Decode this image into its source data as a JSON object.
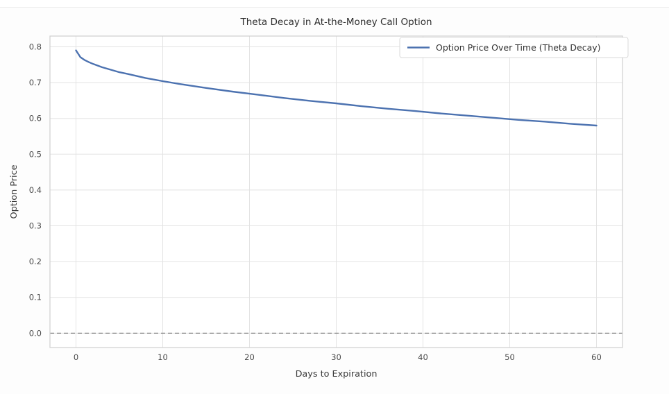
{
  "chart_data": {
    "type": "line",
    "title": "Theta Decay in At-the-Money Call Option",
    "xlabel": "Days to Expiration",
    "ylabel": "Option Price",
    "xlim": [
      -3,
      63
    ],
    "ylim": [
      -0.04,
      0.83
    ],
    "xticks": [
      0,
      10,
      20,
      30,
      40,
      50,
      60
    ],
    "xtick_labels": [
      "0",
      "10",
      "20",
      "30",
      "40",
      "50",
      "60"
    ],
    "yticks": [
      0.0,
      0.1,
      0.2,
      0.3,
      0.4,
      0.5,
      0.6,
      0.7,
      0.8
    ],
    "ytick_labels": [
      "0.0",
      "0.1",
      "0.2",
      "0.3",
      "0.4",
      "0.5",
      "0.6",
      "0.7",
      "0.8"
    ],
    "grid": true,
    "legend_position": "upper right",
    "series": [
      {
        "name": "Option Price Over Time (Theta Decay)",
        "color": "#4c72b0",
        "x": [
          0,
          0.5,
          1,
          1.5,
          2,
          3,
          4,
          5,
          6,
          8,
          10,
          12,
          15,
          18,
          21,
          24,
          27,
          30,
          33,
          36,
          39,
          42,
          45,
          48,
          51,
          54,
          57,
          60
        ],
        "y": [
          0.79,
          0.771,
          0.763,
          0.757,
          0.752,
          0.743,
          0.736,
          0.729,
          0.724,
          0.713,
          0.704,
          0.696,
          0.685,
          0.675,
          0.666,
          0.657,
          0.649,
          0.642,
          0.634,
          0.627,
          0.621,
          0.614,
          0.608,
          0.602,
          0.596,
          0.591,
          0.585,
          0.58
        ]
      }
    ],
    "annotations": [
      {
        "type": "hline",
        "y": 0.0,
        "style": "dashed",
        "color": "#8a8a8a"
      }
    ]
  },
  "colors": {
    "line": "#4c72b0",
    "grid": "#e3e3e3",
    "spine": "#cfcfcf",
    "dashed": "#8a8a8a",
    "plot_bg": "#ffffff",
    "legend_border": "#d9d9d9",
    "legend_bg": "#ffffff"
  }
}
